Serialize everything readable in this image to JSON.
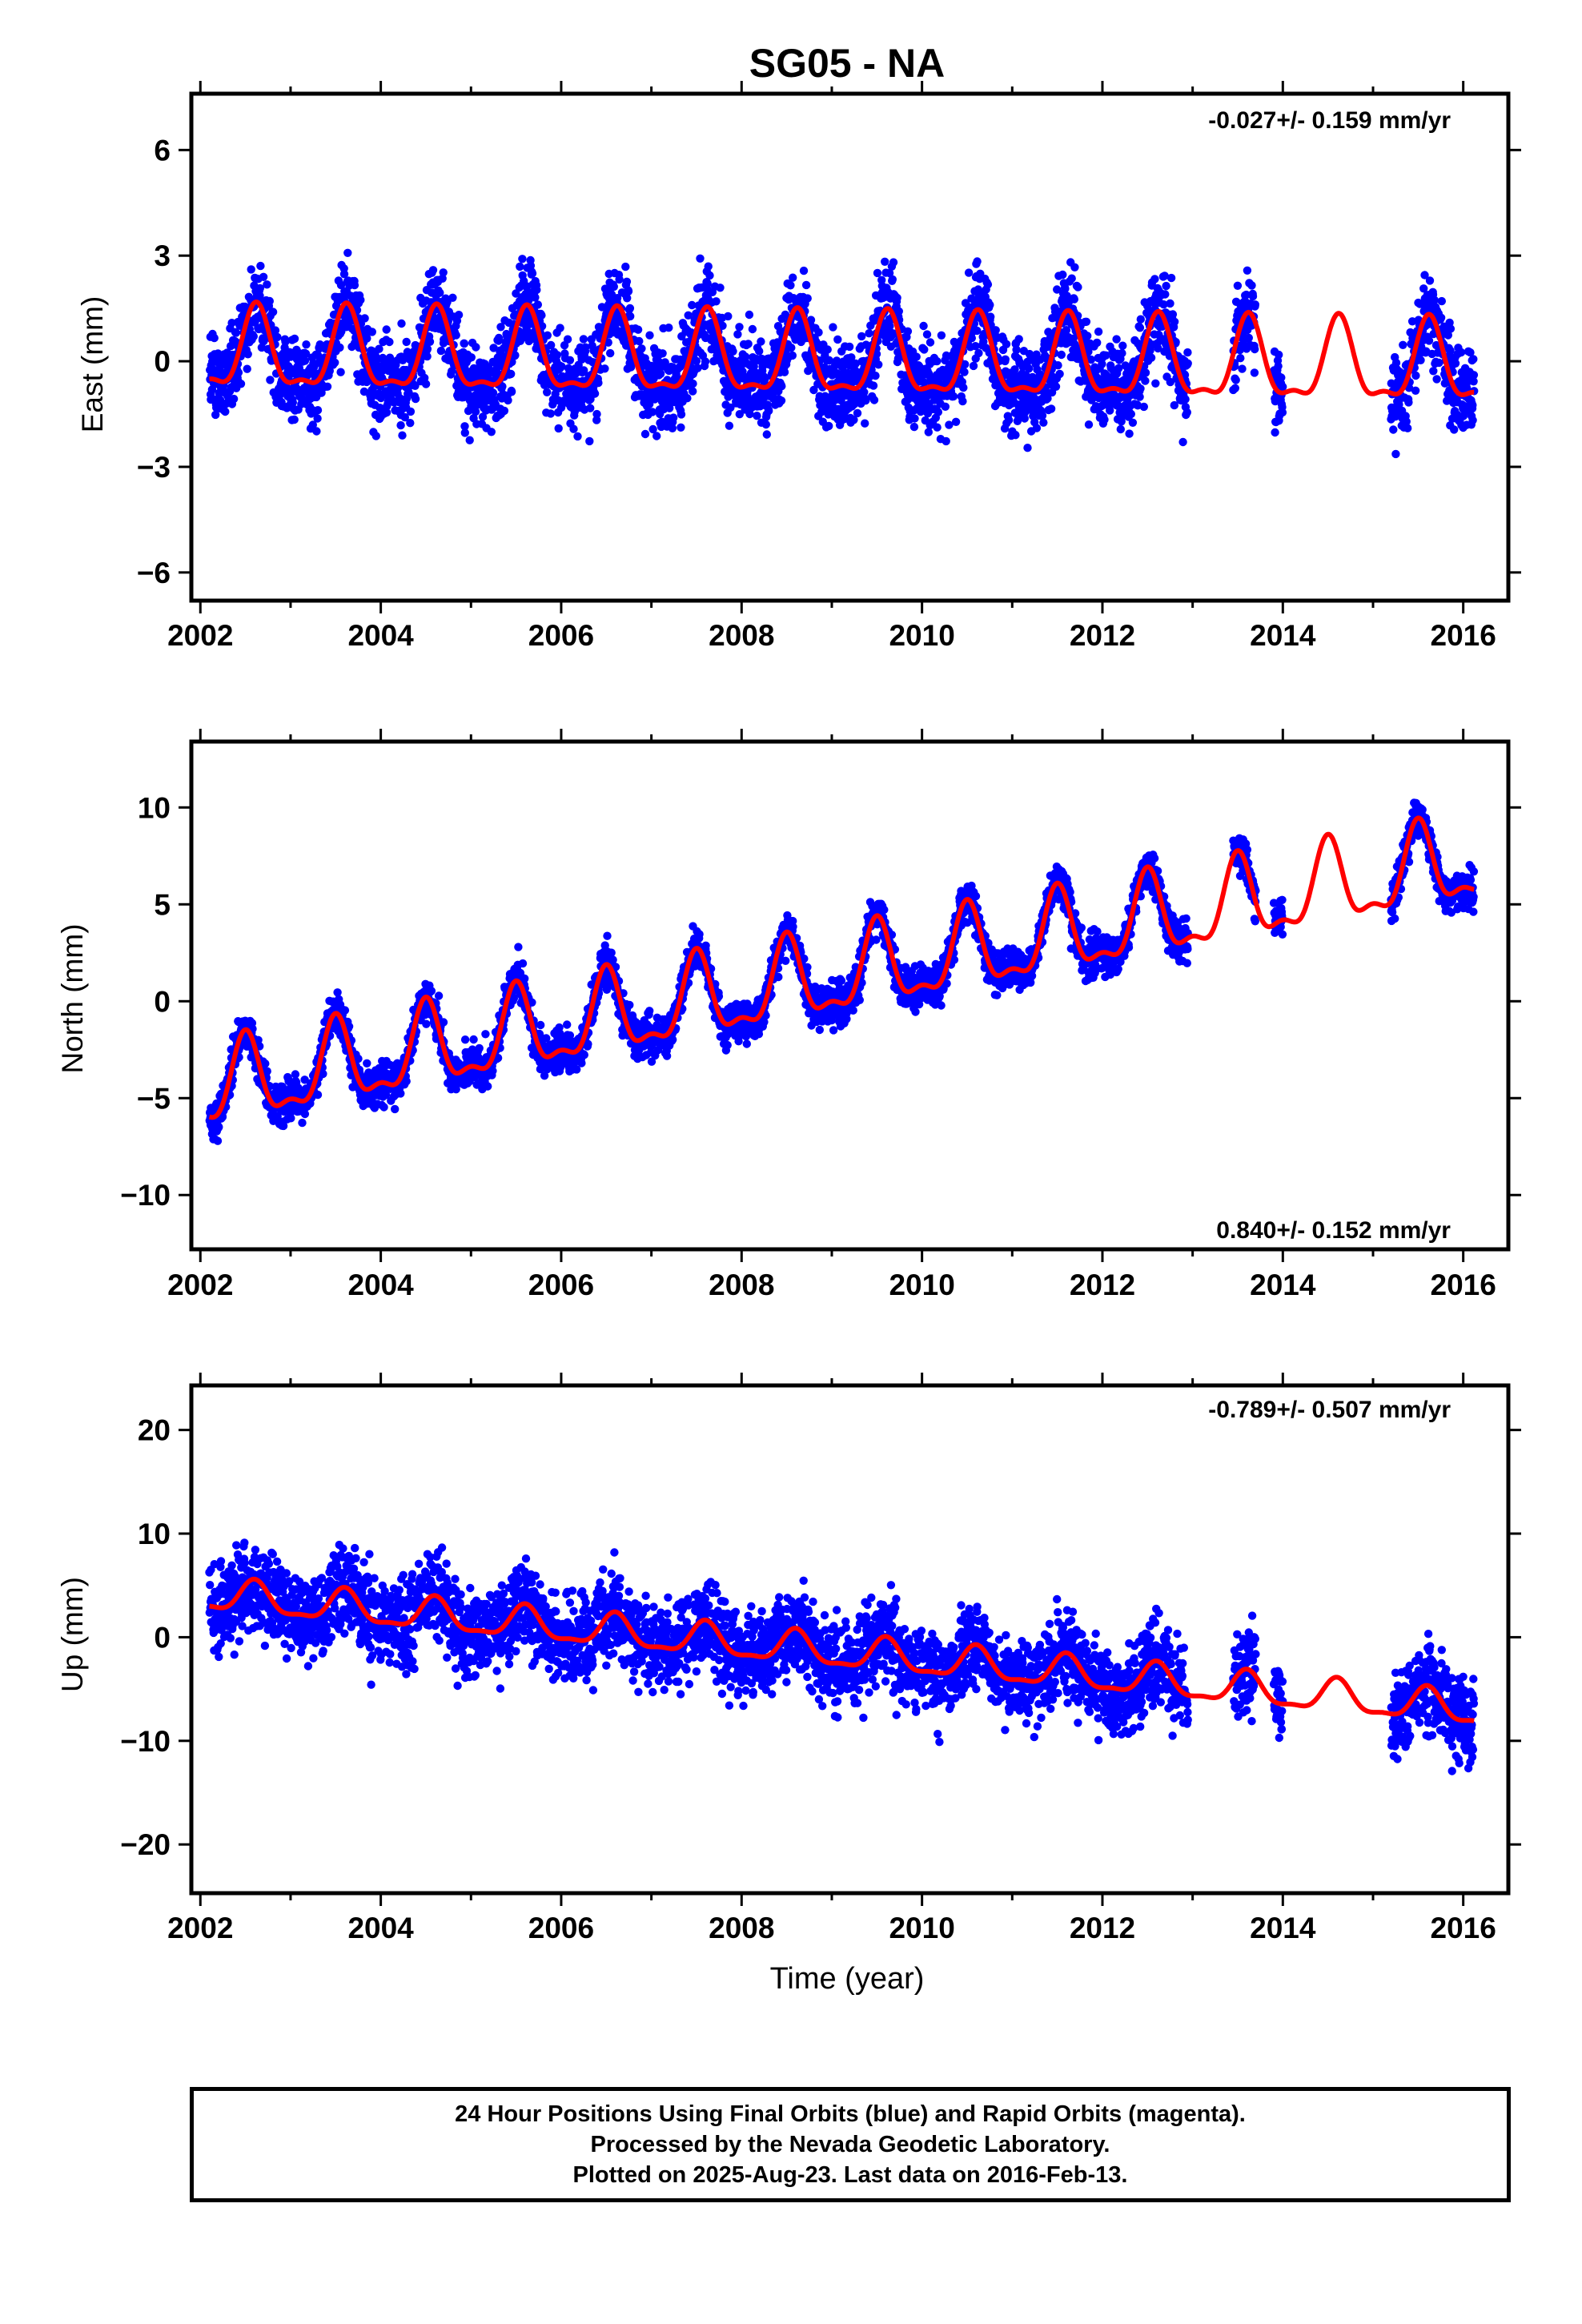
{
  "title": "SG05 - NA",
  "colors": {
    "points": "#0000ff",
    "fit": "#ff0000",
    "frame": "#000000"
  },
  "chart_data": [
    {
      "type": "scatter",
      "ylabel": "East (mm)",
      "xlabel": "",
      "xlim": [
        2001.9,
        2016.5
      ],
      "ylim": [
        -6.8,
        7.6
      ],
      "xticks": [
        "2002",
        "2004",
        "2006",
        "2008",
        "2010",
        "2012",
        "2014",
        "2016"
      ],
      "yticks": [
        "6",
        "3",
        "0",
        "−3",
        "−6"
      ],
      "ytick_values": [
        6,
        3,
        0,
        -3,
        -6
      ],
      "rate_text": "-0.027+/- 0.159 mm/yr",
      "rate_position": "top-right",
      "fit": {
        "offset": 0.2,
        "rate": -0.027,
        "annual_amplitude": 1.1,
        "semiannual_amplitude": 0.4,
        "peak_month_fraction": 0.62
      },
      "data_spans": [
        [
          2002.1,
          2012.95
        ],
        [
          2013.45,
          2013.7
        ],
        [
          2013.9,
          2014.0
        ],
        [
          2015.2,
          2016.12
        ]
      ],
      "noise_sigma": 1.55,
      "series": [
        {
          "name": "24 Hour Positions Using Final Orbits (blue)"
        },
        {
          "name": "Rapid Orbits (magenta)"
        }
      ]
    },
    {
      "type": "scatter",
      "ylabel": "North (mm)",
      "xlabel": "",
      "xlim": [
        2001.9,
        2016.5
      ],
      "ylim": [
        -12.8,
        13.4
      ],
      "xticks": [
        "2002",
        "2004",
        "2006",
        "2008",
        "2010",
        "2012",
        "2014",
        "2016"
      ],
      "yticks": [
        "10",
        "5",
        "0",
        "−5",
        "−10"
      ],
      "ytick_values": [
        10,
        5,
        0,
        -5,
        -10
      ],
      "rate_text": "0.840+/- 0.152 mm/yr",
      "rate_position": "bottom-right",
      "fit": {
        "offset": -4.6,
        "rate": 0.84,
        "annual_amplitude": 2.0,
        "semiannual_amplitude": 0.8,
        "peak_month_fraction": 0.5
      },
      "data_spans": [
        [
          2002.1,
          2012.95
        ],
        [
          2013.45,
          2013.7
        ],
        [
          2013.9,
          2014.0
        ],
        [
          2015.2,
          2016.12
        ]
      ],
      "noise_sigma": 1.3,
      "series": [
        {
          "name": "24 Hour Positions Using Final Orbits (blue)"
        },
        {
          "name": "Rapid Orbits (magenta)"
        }
      ]
    },
    {
      "type": "scatter",
      "ylabel": "Up (mm)",
      "xlabel": "Time (year)",
      "xlim": [
        2001.9,
        2016.5
      ],
      "ylim": [
        -24.7,
        24.3
      ],
      "xticks": [
        "2002",
        "2004",
        "2006",
        "2008",
        "2010",
        "2012",
        "2014",
        "2016"
      ],
      "yticks": [
        "20",
        "10",
        "0",
        "−10",
        "−20"
      ],
      "ytick_values": [
        20,
        10,
        0,
        -10,
        -20
      ],
      "rate_text": "-0.789+/- 0.507 mm/yr",
      "rate_position": "top-right",
      "fit": {
        "offset": 4.0,
        "rate": -0.789,
        "annual_amplitude": 1.5,
        "semiannual_amplitude": 0.5,
        "peak_month_fraction": 0.6
      },
      "data_spans": [
        [
          2002.1,
          2012.95
        ],
        [
          2013.45,
          2013.7
        ],
        [
          2013.9,
          2014.0
        ],
        [
          2015.2,
          2016.12
        ]
      ],
      "noise_sigma": 5.2,
      "series": [
        {
          "name": "24 Hour Positions Using Final Orbits (blue)"
        },
        {
          "name": "Rapid Orbits (magenta)"
        }
      ]
    }
  ],
  "caption": {
    "line1": "24 Hour Positions Using Final Orbits (blue) and Rapid Orbits (magenta).",
    "line2": "Processed by the Nevada Geodetic Laboratory.",
    "line3": "Plotted on 2025-Aug-23. Last data on 2016-Feb-13."
  }
}
